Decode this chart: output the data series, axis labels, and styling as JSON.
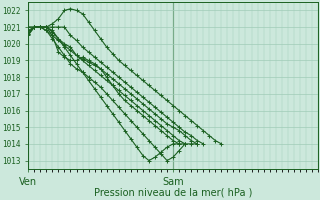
{
  "title": "Pression niveau de la mer( hPa )",
  "bg_color": "#cce8dc",
  "grid_color": "#a0ccb8",
  "line_color": "#1a6020",
  "tick_label_color": "#1a6020",
  "ylim": [
    1012.5,
    1022.5
  ],
  "yticks": [
    1013,
    1014,
    1015,
    1016,
    1017,
    1018,
    1019,
    1020,
    1021,
    1022
  ],
  "xlim": [
    0,
    48
  ],
  "ven_x": 0,
  "sam_x": 24,
  "lines": [
    [
      [
        0,
        1020.6
      ],
      [
        1,
        1021.0
      ],
      [
        2,
        1021.0
      ],
      [
        3,
        1021.0
      ],
      [
        4,
        1021.0
      ],
      [
        5,
        1021.0
      ],
      [
        6,
        1021.0
      ],
      [
        7,
        1020.5
      ],
      [
        8,
        1020.2
      ],
      [
        9,
        1019.8
      ],
      [
        10,
        1019.5
      ],
      [
        11,
        1019.2
      ],
      [
        12,
        1018.9
      ],
      [
        13,
        1018.6
      ],
      [
        14,
        1018.3
      ],
      [
        15,
        1018.0
      ],
      [
        16,
        1017.7
      ],
      [
        17,
        1017.4
      ],
      [
        18,
        1017.1
      ],
      [
        19,
        1016.8
      ],
      [
        20,
        1016.5
      ],
      [
        21,
        1016.2
      ],
      [
        22,
        1015.9
      ],
      [
        23,
        1015.6
      ],
      [
        24,
        1015.3
      ],
      [
        25,
        1015.0
      ],
      [
        26,
        1014.7
      ],
      [
        27,
        1014.5
      ],
      [
        28,
        1014.2
      ],
      [
        29,
        1014.0
      ]
    ],
    [
      [
        0,
        1021.0
      ],
      [
        1,
        1021.0
      ],
      [
        2,
        1021.0
      ],
      [
        3,
        1021.0
      ],
      [
        4,
        1021.2
      ],
      [
        5,
        1021.5
      ],
      [
        6,
        1022.0
      ],
      [
        7,
        1022.1
      ],
      [
        8,
        1022.0
      ],
      [
        9,
        1021.8
      ],
      [
        10,
        1021.3
      ],
      [
        11,
        1020.8
      ],
      [
        12,
        1020.3
      ],
      [
        13,
        1019.8
      ],
      [
        14,
        1019.4
      ],
      [
        15,
        1019.0
      ],
      [
        16,
        1018.7
      ],
      [
        17,
        1018.4
      ],
      [
        18,
        1018.1
      ],
      [
        19,
        1017.8
      ],
      [
        20,
        1017.5
      ],
      [
        21,
        1017.2
      ],
      [
        22,
        1016.9
      ],
      [
        23,
        1016.6
      ],
      [
        24,
        1016.3
      ],
      [
        25,
        1016.0
      ],
      [
        26,
        1015.7
      ],
      [
        27,
        1015.4
      ],
      [
        28,
        1015.1
      ],
      [
        29,
        1014.8
      ],
      [
        30,
        1014.5
      ],
      [
        31,
        1014.2
      ],
      [
        32,
        1014.0
      ]
    ],
    [
      [
        0,
        1020.8
      ],
      [
        1,
        1021.0
      ],
      [
        2,
        1021.0
      ],
      [
        3,
        1021.0
      ],
      [
        4,
        1020.7
      ],
      [
        5,
        1020.3
      ],
      [
        6,
        1020.0
      ],
      [
        7,
        1019.8
      ],
      [
        8,
        1019.3
      ],
      [
        9,
        1019.1
      ],
      [
        10,
        1018.9
      ],
      [
        11,
        1018.7
      ],
      [
        12,
        1018.5
      ],
      [
        13,
        1018.0
      ],
      [
        14,
        1017.5
      ],
      [
        15,
        1017.0
      ],
      [
        16,
        1016.6
      ],
      [
        17,
        1016.3
      ],
      [
        18,
        1016.0
      ],
      [
        19,
        1015.7
      ],
      [
        20,
        1015.4
      ],
      [
        21,
        1015.1
      ],
      [
        22,
        1014.8
      ],
      [
        23,
        1014.5
      ],
      [
        24,
        1014.2
      ],
      [
        25,
        1014.0
      ]
    ],
    [
      [
        0,
        1020.7
      ],
      [
        1,
        1021.0
      ],
      [
        2,
        1021.0
      ],
      [
        3,
        1021.0
      ],
      [
        4,
        1020.5
      ],
      [
        5,
        1019.5
      ],
      [
        6,
        1019.2
      ],
      [
        7,
        1019.0
      ],
      [
        8,
        1019.0
      ],
      [
        9,
        1019.2
      ],
      [
        10,
        1019.0
      ],
      [
        11,
        1018.8
      ],
      [
        12,
        1018.5
      ],
      [
        13,
        1018.2
      ],
      [
        14,
        1017.9
      ],
      [
        15,
        1017.6
      ],
      [
        16,
        1017.3
      ],
      [
        17,
        1017.0
      ],
      [
        18,
        1016.7
      ],
      [
        19,
        1016.4
      ],
      [
        20,
        1016.1
      ],
      [
        21,
        1015.8
      ],
      [
        22,
        1015.5
      ],
      [
        23,
        1015.2
      ],
      [
        24,
        1015.0
      ],
      [
        25,
        1014.8
      ],
      [
        26,
        1014.5
      ],
      [
        27,
        1014.2
      ],
      [
        28,
        1014.0
      ]
    ],
    [
      [
        0,
        1020.5
      ],
      [
        1,
        1021.0
      ],
      [
        2,
        1021.0
      ],
      [
        3,
        1021.0
      ],
      [
        4,
        1020.8
      ],
      [
        5,
        1020.3
      ],
      [
        6,
        1019.8
      ],
      [
        7,
        1019.3
      ],
      [
        8,
        1018.8
      ],
      [
        9,
        1018.3
      ],
      [
        10,
        1017.8
      ],
      [
        11,
        1017.3
      ],
      [
        12,
        1016.8
      ],
      [
        13,
        1016.3
      ],
      [
        14,
        1015.8
      ],
      [
        15,
        1015.3
      ],
      [
        16,
        1014.8
      ],
      [
        17,
        1014.3
      ],
      [
        18,
        1013.8
      ],
      [
        19,
        1013.3
      ],
      [
        20,
        1013.0
      ],
      [
        21,
        1013.2
      ],
      [
        22,
        1013.5
      ],
      [
        23,
        1013.8
      ],
      [
        24,
        1014.0
      ],
      [
        25,
        1014.0
      ],
      [
        26,
        1014.0
      ],
      [
        27,
        1014.0
      ],
      [
        28,
        1014.0
      ]
    ],
    [
      [
        0,
        1020.6
      ],
      [
        1,
        1021.0
      ],
      [
        2,
        1021.0
      ],
      [
        3,
        1020.8
      ],
      [
        4,
        1020.5
      ],
      [
        5,
        1020.2
      ],
      [
        6,
        1019.9
      ],
      [
        7,
        1019.6
      ],
      [
        8,
        1019.3
      ],
      [
        9,
        1019.0
      ],
      [
        10,
        1018.7
      ],
      [
        11,
        1018.4
      ],
      [
        12,
        1018.1
      ],
      [
        13,
        1017.8
      ],
      [
        14,
        1017.5
      ],
      [
        15,
        1017.2
      ],
      [
        16,
        1016.9
      ],
      [
        17,
        1016.6
      ],
      [
        18,
        1016.3
      ],
      [
        19,
        1016.0
      ],
      [
        20,
        1015.7
      ],
      [
        21,
        1015.4
      ],
      [
        22,
        1015.1
      ],
      [
        23,
        1014.8
      ],
      [
        24,
        1014.5
      ],
      [
        25,
        1014.2
      ],
      [
        26,
        1014.0
      ]
    ],
    [
      [
        0,
        1021.0
      ],
      [
        1,
        1021.0
      ],
      [
        2,
        1021.0
      ],
      [
        3,
        1020.8
      ],
      [
        4,
        1020.3
      ],
      [
        5,
        1019.8
      ],
      [
        6,
        1019.3
      ],
      [
        7,
        1018.8
      ],
      [
        8,
        1018.5
      ],
      [
        9,
        1018.3
      ],
      [
        10,
        1018.0
      ],
      [
        11,
        1017.7
      ],
      [
        12,
        1017.4
      ],
      [
        13,
        1017.0
      ],
      [
        14,
        1016.6
      ],
      [
        15,
        1016.2
      ],
      [
        16,
        1015.8
      ],
      [
        17,
        1015.4
      ],
      [
        18,
        1015.0
      ],
      [
        19,
        1014.6
      ],
      [
        20,
        1014.2
      ],
      [
        21,
        1013.8
      ],
      [
        22,
        1013.4
      ],
      [
        23,
        1013.0
      ],
      [
        24,
        1013.2
      ],
      [
        25,
        1013.6
      ],
      [
        26,
        1014.0
      ]
    ]
  ]
}
